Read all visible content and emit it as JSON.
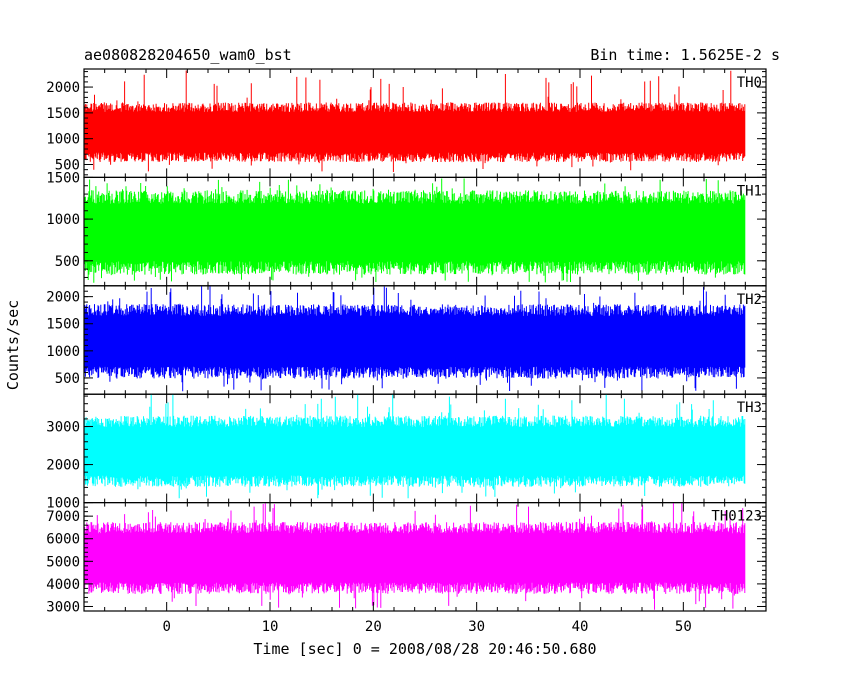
{
  "chart_data": {
    "type": "line",
    "title": "ae080828204650_wam0_bst",
    "subtitle": "Bin time: 1.5625E-2 s",
    "xlabel": "Time [sec] 0 = 2008/08/28 20:46:50.680",
    "ylabel": "Counts/sec",
    "xlim": [
      -8,
      58
    ],
    "x_range_data": [
      -8,
      56
    ],
    "xticks": [
      0,
      10,
      20,
      30,
      40,
      50
    ],
    "xtick_labels": [
      "0",
      "10",
      "20",
      "30",
      "40",
      "50"
    ],
    "grid": false,
    "legend": "panel labels top-right",
    "panels": [
      {
        "name": "TH0",
        "color": "#ff0000",
        "ylim": [
          250,
          2350
        ],
        "yticks": [
          500,
          1000,
          1500,
          2000
        ],
        "ytick_labels": [
          "500",
          "1000",
          "1500",
          "2000"
        ],
        "typical_low": 600,
        "typical_high": 1650,
        "min": 330,
        "max": 2350
      },
      {
        "name": "TH1",
        "color": "#00ff00",
        "ylim": [
          200,
          1500
        ],
        "yticks": [
          500,
          1000,
          1500
        ],
        "ytick_labels": [
          "500",
          "1000",
          "1500"
        ],
        "typical_low": 380,
        "typical_high": 1300,
        "min": 230,
        "max": 1500
      },
      {
        "name": "TH2",
        "color": "#0000ff",
        "ylim": [
          200,
          2200
        ],
        "yticks": [
          500,
          1000,
          1500,
          2000
        ],
        "ytick_labels": [
          "500",
          "1000",
          "1500",
          "2000"
        ],
        "typical_low": 550,
        "typical_high": 1800,
        "min": 250,
        "max": 2200
      },
      {
        "name": "TH3",
        "color": "#00ffff",
        "ylim": [
          1000,
          3850
        ],
        "yticks": [
          1000,
          2000,
          3000
        ],
        "ytick_labels": [
          "1000",
          "2000",
          "3000"
        ],
        "typical_low": 1500,
        "typical_high": 3200,
        "min": 1100,
        "max": 3850
      },
      {
        "name": "TH0123",
        "color": "#ff00ff",
        "ylim": [
          2800,
          7600
        ],
        "yticks": [
          3000,
          4000,
          5000,
          6000,
          7000
        ],
        "ytick_labels": [
          "3000",
          "4000",
          "5000",
          "6000",
          "7000"
        ],
        "typical_low": 3700,
        "typical_high": 6600,
        "min": 2850,
        "max": 7600
      }
    ]
  }
}
